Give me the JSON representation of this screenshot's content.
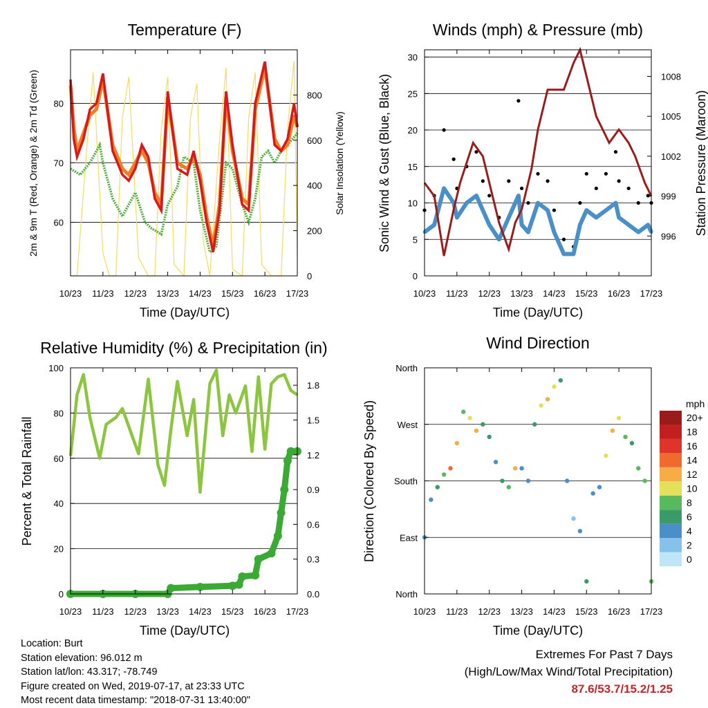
{
  "chart_data": [
    {
      "type": "line",
      "title": "Temperature (F)",
      "xlabel": "Time (Day/UTC)",
      "ylabel": "2m & 9m T (Red, Orange) & 2m Td (Green)",
      "ylabel_right": "Solar Insolation (Yellow)",
      "x_ticks": [
        "10/23",
        "11/23",
        "12/23",
        "13/23",
        "14/23",
        "15/23",
        "16/23",
        "17/23"
      ],
      "y_ticks": [
        60,
        70,
        80
      ],
      "y2_ticks": [
        0,
        200,
        400,
        600,
        800
      ],
      "ylim": [
        51,
        89
      ],
      "y2lim": [
        0,
        1000
      ],
      "grid": true,
      "colors": {
        "t2m": "#d7191c",
        "t9m": "#f07f24",
        "td2m": "#4daf3a",
        "solar": "#f5dc5a"
      },
      "series": [
        {
          "key": "t2m",
          "x": [
            10.0,
            10.1,
            10.2,
            10.4,
            10.6,
            10.8,
            11.0,
            11.3,
            11.6,
            11.8,
            12.0,
            12.2,
            12.4,
            12.6,
            12.8,
            13.0,
            13.3,
            13.6,
            13.8,
            14.0,
            14.2,
            14.4,
            14.6,
            14.8,
            15.0,
            15.3,
            15.5,
            15.7,
            16.0,
            16.3,
            16.5,
            16.7,
            16.9,
            17.0
          ],
          "y": [
            84,
            74,
            71,
            74,
            79,
            80,
            85,
            72,
            68,
            67,
            69,
            73,
            71,
            64,
            62,
            82,
            69,
            68,
            72,
            67,
            60,
            55,
            62,
            82,
            73,
            63,
            62,
            80,
            87,
            73,
            72,
            74,
            80,
            76
          ]
        },
        {
          "key": "t9m",
          "x": [
            10.0,
            10.1,
            10.2,
            10.4,
            10.6,
            10.8,
            11.0,
            11.3,
            11.6,
            11.8,
            12.0,
            12.2,
            12.4,
            12.6,
            12.8,
            13.0,
            13.3,
            13.6,
            13.8,
            14.0,
            14.2,
            14.4,
            14.6,
            14.8,
            15.0,
            15.3,
            15.5,
            15.7,
            16.0,
            16.3,
            16.5,
            16.7,
            16.9,
            17.0
          ],
          "y": [
            83,
            76,
            72,
            75,
            78,
            79,
            84,
            73,
            69,
            68,
            70,
            72,
            70,
            65,
            63,
            81,
            70,
            69,
            71,
            68,
            61,
            56,
            63,
            81,
            72,
            64,
            63,
            79,
            86,
            74,
            72,
            73,
            78,
            76
          ]
        },
        {
          "key": "td2m",
          "x": [
            10.0,
            10.3,
            10.6,
            10.9,
            11.0,
            11.3,
            11.6,
            11.8,
            12.0,
            12.3,
            12.5,
            12.8,
            13.0,
            13.3,
            13.5,
            13.8,
            14.0,
            14.3,
            14.5,
            14.8,
            15.0,
            15.3,
            15.5,
            15.7,
            15.9,
            16.1,
            16.3,
            16.5,
            16.7,
            17.0
          ],
          "y": [
            69,
            68,
            70,
            73,
            70,
            64,
            61,
            63,
            65,
            60,
            59,
            58,
            63,
            66,
            71,
            70,
            62,
            55,
            56,
            70,
            69,
            63,
            60,
            64,
            71,
            72,
            70,
            72,
            73,
            75
          ]
        },
        {
          "key": "solar",
          "x": [
            10.0,
            10.2,
            10.5,
            10.7,
            11.0,
            11.2,
            11.4,
            11.6,
            11.8,
            12.1,
            12.4,
            12.6,
            12.8,
            13.0,
            13.2,
            13.5,
            13.7,
            13.9,
            14.1,
            14.3,
            14.6,
            14.8,
            15.0,
            15.3,
            15.5,
            15.7,
            15.9,
            16.2,
            16.5,
            16.7,
            16.9,
            17.0
          ],
          "y": [
            0,
            0,
            560,
            900,
            100,
            0,
            0,
            700,
            880,
            80,
            0,
            0,
            650,
            880,
            50,
            0,
            700,
            850,
            150,
            0,
            600,
            920,
            30,
            0,
            700,
            900,
            50,
            0,
            0,
            650,
            950,
            80
          ]
        }
      ]
    },
    {
      "type": "scatter",
      "title": "Winds (mph) & Pressure (mb)",
      "xlabel": "Time (Day/UTC)",
      "ylabel": "Sonic Wind & Gust (Blue, Black)",
      "ylabel_right": "Station Pressure (Maroon)",
      "x_ticks": [
        "10/23",
        "11/23",
        "12/23",
        "13/23",
        "14/23",
        "15/23",
        "16/23",
        "17/23"
      ],
      "y_ticks": [
        0,
        5,
        10,
        15,
        20,
        25,
        30
      ],
      "y2_ticks": [
        996,
        999,
        1002,
        1005,
        1008
      ],
      "ylim": [
        0,
        31
      ],
      "y2lim": [
        993,
        1010
      ],
      "grid": true,
      "colors": {
        "wind": "#4a90c8",
        "gust": "#000000",
        "pressure": "#9b1b1b"
      },
      "series": [
        {
          "key": "wind",
          "x": [
            10.0,
            10.3,
            10.6,
            10.9,
            11.0,
            11.3,
            11.6,
            11.8,
            12.0,
            12.3,
            12.6,
            12.9,
            13.0,
            13.2,
            13.5,
            13.8,
            14.0,
            14.3,
            14.6,
            14.8,
            15.0,
            15.3,
            15.6,
            15.9,
            16.0,
            16.3,
            16.6,
            16.9,
            17.0
          ],
          "y": [
            6,
            7,
            12,
            10,
            8,
            10,
            11,
            9,
            7,
            5,
            8,
            11,
            7,
            6,
            10,
            9,
            6,
            3,
            3,
            7,
            9,
            8,
            9,
            10,
            8,
            7,
            6,
            7,
            6
          ]
        },
        {
          "key": "gust",
          "x": [
            10.0,
            10.3,
            10.6,
            10.9,
            11.0,
            11.3,
            11.6,
            11.8,
            12.0,
            12.3,
            12.6,
            12.9,
            13.0,
            13.2,
            13.5,
            13.8,
            14.0,
            14.3,
            14.6,
            14.8,
            15.0,
            15.3,
            15.6,
            15.9,
            16.0,
            16.3,
            16.6,
            16.9,
            17.0
          ],
          "y": [
            9,
            11,
            20,
            16,
            12,
            15,
            17,
            13,
            11,
            8,
            13,
            24,
            12,
            10,
            14,
            13,
            9,
            5,
            4,
            10,
            14,
            12,
            14,
            17,
            13,
            12,
            10,
            11,
            10
          ]
        },
        {
          "key": "pressure",
          "x": [
            10.0,
            10.3,
            10.6,
            10.9,
            11.1,
            11.5,
            11.8,
            12.0,
            12.3,
            12.6,
            12.8,
            13.0,
            13.3,
            13.5,
            13.8,
            14.0,
            14.3,
            14.6,
            14.8,
            15.0,
            15.3,
            15.5,
            15.7,
            16.0,
            16.3,
            16.5,
            16.8,
            17.0
          ],
          "y": [
            1000,
            999,
            994.5,
            998,
            1000,
            1003,
            1002,
            1000,
            997,
            995,
            997,
            998,
            1001,
            1004,
            1007,
            1007,
            1007,
            1009,
            1010,
            1008,
            1005,
            1004,
            1003,
            1004,
            1003,
            1002,
            1000,
            999
          ]
        }
      ]
    },
    {
      "type": "line",
      "title": "Relative Humidity (%) & Precipitation (in)",
      "xlabel": "Time (Day/UTC)",
      "ylabel": "Percent & Total Rainfall",
      "x_ticks": [
        "10/23",
        "11/23",
        "12/23",
        "13/23",
        "14/23",
        "15/23",
        "16/23",
        "17/23"
      ],
      "y_ticks": [
        0,
        20,
        40,
        60,
        80,
        100
      ],
      "y2_ticks": [
        "0.0",
        "0.3",
        "0.6",
        "0.9",
        "1.2",
        "1.5",
        "1.8"
      ],
      "ylim": [
        0,
        100
      ],
      "y2lim": [
        0,
        1.95
      ],
      "grid": true,
      "colors": {
        "rh": "#8cc63f",
        "precip": "#3aaa35"
      },
      "series": [
        {
          "key": "rh",
          "x": [
            10.0,
            10.2,
            10.4,
            10.6,
            10.9,
            11.1,
            11.4,
            11.6,
            11.8,
            12.1,
            12.4,
            12.7,
            12.9,
            13.1,
            13.3,
            13.6,
            13.8,
            14.0,
            14.3,
            14.5,
            14.7,
            14.9,
            15.1,
            15.4,
            15.6,
            15.8,
            16.0,
            16.2,
            16.4,
            16.6,
            16.8,
            17.0
          ],
          "y": [
            61,
            88,
            97,
            78,
            60,
            75,
            78,
            82,
            74,
            62,
            95,
            57,
            48,
            73,
            94,
            70,
            86,
            45,
            93,
            99,
            70,
            88,
            80,
            92,
            63,
            96,
            64,
            93,
            96,
            97,
            90,
            88
          ]
        },
        {
          "key": "precip",
          "x": [
            10.0,
            11.0,
            12.0,
            13.0,
            13.1,
            14.0,
            15.0,
            15.2,
            15.3,
            15.7,
            15.8,
            16.2,
            16.4,
            16.5,
            16.6,
            16.7,
            16.8,
            17.0
          ],
          "y": [
            0,
            0,
            0,
            0,
            0.05,
            0.06,
            0.07,
            0.08,
            0.15,
            0.16,
            0.3,
            0.35,
            0.5,
            0.7,
            0.9,
            1.15,
            1.23,
            1.23
          ]
        }
      ]
    },
    {
      "type": "scatter",
      "title": "Wind Direction",
      "xlabel": "Time (Day/UTC)",
      "ylabel": "Direction (Colored By Speed)",
      "x_ticks": [
        "10/23",
        "11/23",
        "12/23",
        "13/23",
        "14/23",
        "15/23",
        "16/23",
        "17/23"
      ],
      "y_ticks": [
        "North",
        "East",
        "South",
        "West",
        "North"
      ],
      "ylim": [
        0,
        360
      ],
      "grid": true,
      "colorbar": {
        "title": "mph",
        "labels": [
          "0",
          "2",
          "4",
          "6",
          "8",
          "10",
          "12",
          "14",
          "16",
          "18",
          "20+"
        ],
        "colors": [
          "#bfe6f7",
          "#85c1e9",
          "#4a8fc8",
          "#3a9a68",
          "#58b95d",
          "#e4e05a",
          "#f7ad45",
          "#ef6a2c",
          "#e0332a",
          "#c1201f",
          "#9b1b1b"
        ]
      },
      "series": [
        {
          "key": "direction",
          "x": [
            10.0,
            10.2,
            10.4,
            10.6,
            10.8,
            11.0,
            11.2,
            11.4,
            11.6,
            11.8,
            12.0,
            12.2,
            12.4,
            12.6,
            12.8,
            13.0,
            13.2,
            13.4,
            13.6,
            13.8,
            14.0,
            14.2,
            14.4,
            14.6,
            14.8,
            15.0,
            15.2,
            15.4,
            15.6,
            15.8,
            16.0,
            16.2,
            16.4,
            16.6,
            16.8,
            17.0
          ],
          "y": [
            90,
            150,
            170,
            190,
            200,
            240,
            290,
            280,
            260,
            270,
            250,
            210,
            180,
            170,
            200,
            200,
            180,
            270,
            300,
            310,
            330,
            340,
            180,
            120,
            100,
            20,
            160,
            170,
            220,
            260,
            280,
            250,
            240,
            200,
            180,
            20
          ],
          "speed": [
            3,
            4,
            5,
            7,
            14,
            12,
            8,
            9,
            12,
            6,
            5,
            4,
            5,
            8,
            12,
            4,
            3,
            6,
            10,
            12,
            9,
            6,
            3,
            2,
            3,
            6,
            4,
            4,
            9,
            12,
            10,
            7,
            6,
            8,
            7,
            7
          ]
        }
      ]
    }
  ],
  "info": {
    "location": "Location: Burt",
    "elevation": "Station elevation: 96.012 m",
    "latlon": "Station lat/lon: 43.317; -78.749",
    "created": "Figure created on Wed, 2019-07-17, at 23:33 UTC",
    "timestamp": "Most recent data timestamp: \"2018-07-31 13:40:00\""
  },
  "extremes": {
    "title": "Extremes For Past 7 Days",
    "subtitle": "(High/Low/Max Wind/Total Precipitation)",
    "values": "87.6/53.7/15.2/1.25"
  }
}
